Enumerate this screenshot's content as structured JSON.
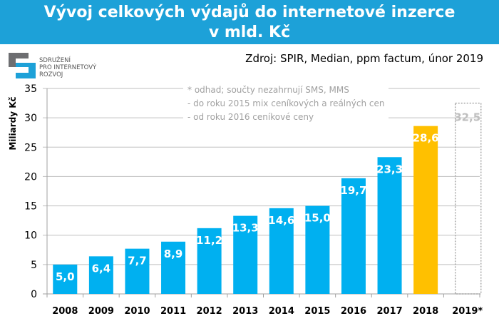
{
  "title_line1": "Vývoj celkových výdajů do internetové inzerce",
  "title_line2": "v mld. Kč",
  "source": "Zdroj: SPIR, Median, ppm factum, únor 2019",
  "logo": {
    "line1": "SDRUŽENÍ",
    "line2": "PRO INTERNETOVÝ",
    "line3": "ROZVOJ"
  },
  "notes": [
    "* odhad; součty nezahrnují  SMS, MMS",
    "- do roku 2015 mix ceníkových a reálných cen",
    "- od roku 2016 ceníkové ceny"
  ],
  "chart_data": {
    "type": "bar",
    "title": "Vývoj celkových výdajů do internetové inzerce v mld. Kč",
    "ylabel": "Miliardy Kč",
    "xlabel": "",
    "ylim": [
      0,
      35
    ],
    "yticks": [
      0,
      5,
      10,
      15,
      20,
      25,
      30,
      35
    ],
    "grid": true,
    "categories": [
      "2008",
      "2009",
      "2010",
      "2011",
      "2012",
      "2013",
      "2014",
      "2015",
      "2016",
      "2017",
      "2018",
      "2019*"
    ],
    "values": [
      5.0,
      6.4,
      7.7,
      8.9,
      11.2,
      13.3,
      14.6,
      15.0,
      19.7,
      23.3,
      28.6,
      32.5
    ],
    "labels": [
      "5,0",
      "6,4",
      "7,7",
      "8,9",
      "11,2",
      "13,3",
      "14,6",
      "15,0",
      "19,7",
      "23,3",
      "28,6",
      "32,5"
    ],
    "colors": {
      "default": "#00b0f0",
      "2018": "#ffc000",
      "2019*": "dotted-outline #a6a6a6"
    }
  }
}
